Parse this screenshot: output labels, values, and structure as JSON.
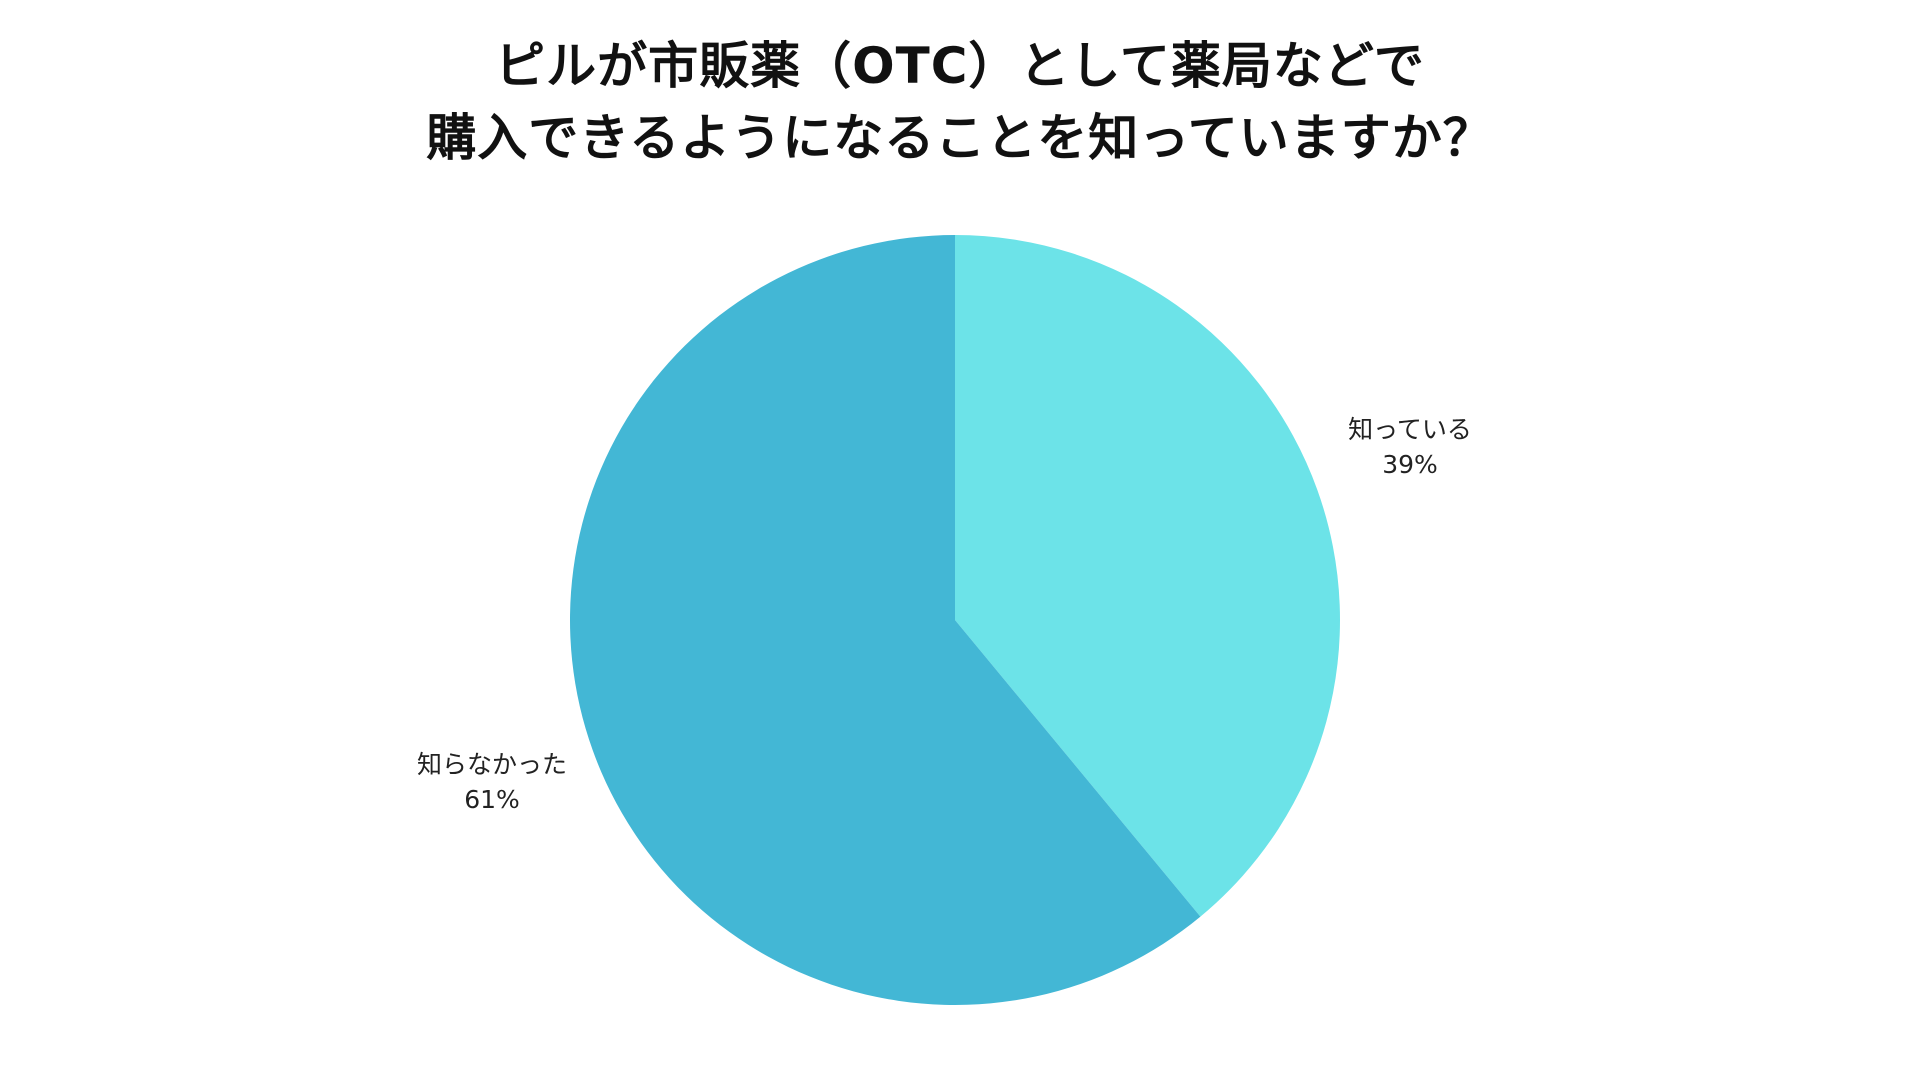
{
  "chart_data": {
    "type": "pie",
    "title_lines": [
      "ピルが市販薬（OTC）として薬局などで",
      "購入できるようになることを知っていますか？"
    ],
    "slices": [
      {
        "label": "知っている",
        "value": 39,
        "value_label": "39%",
        "color": "#6ce3e8"
      },
      {
        "label": "知らなかった",
        "value": 61,
        "value_label": "61%",
        "color": "#43b7d5"
      }
    ],
    "start_angle": "12 o'clock",
    "direction": "clockwise",
    "legend": "none"
  }
}
